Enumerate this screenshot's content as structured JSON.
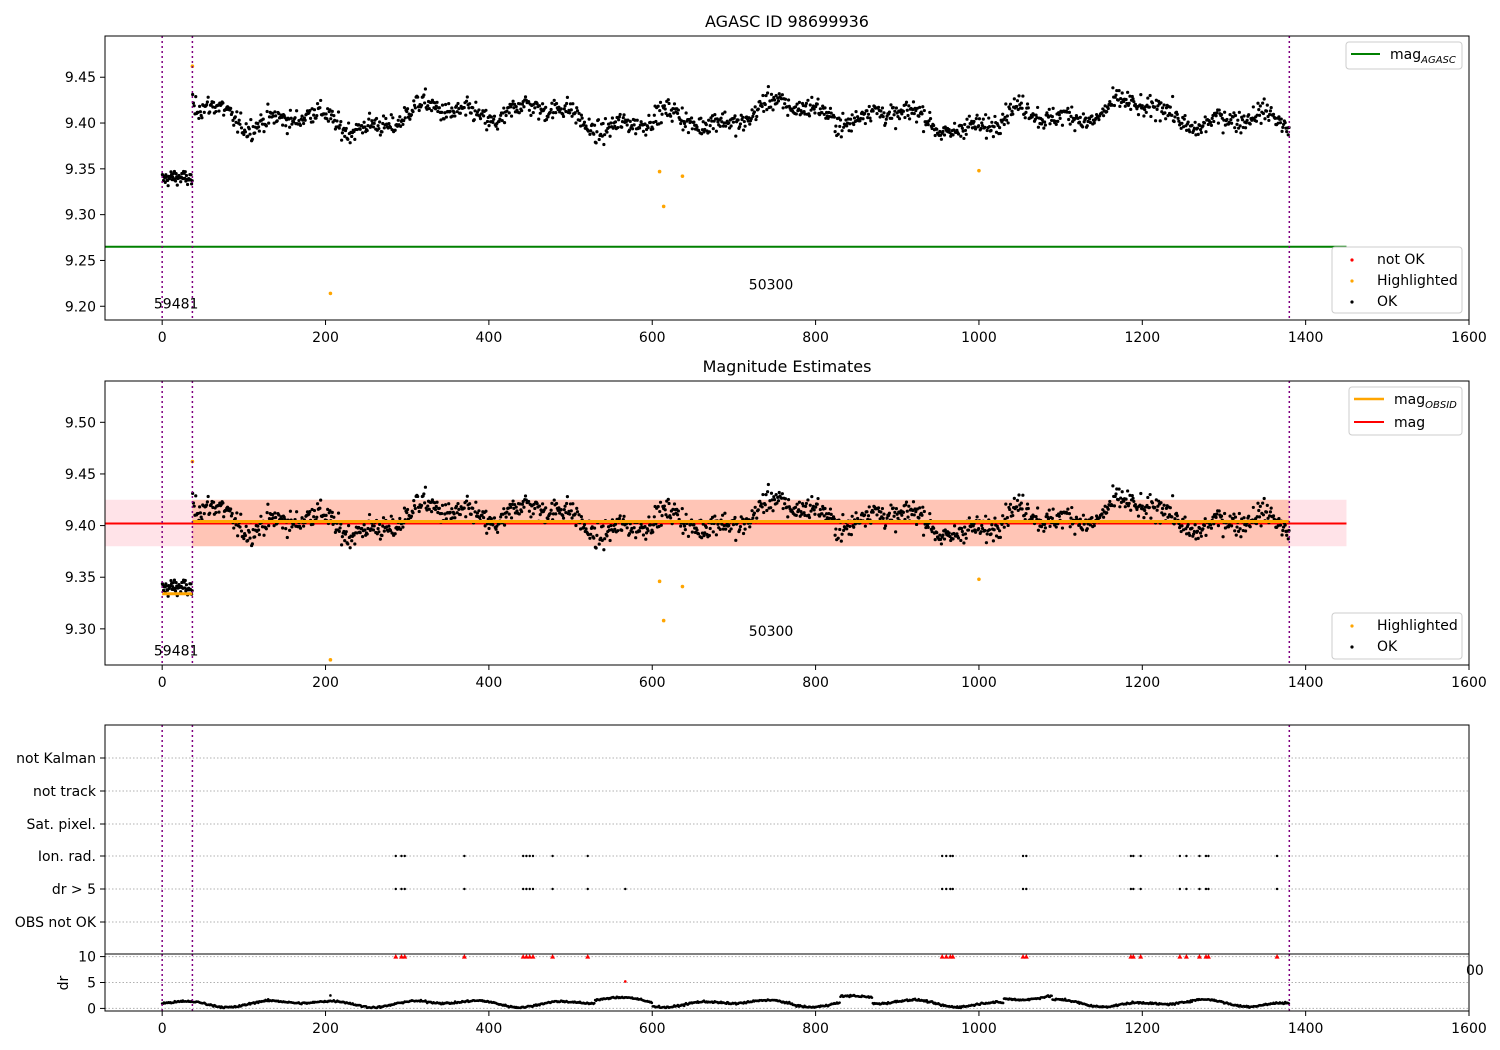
{
  "chart_data": [
    {
      "type": "scatter",
      "title": "AGASC ID 98699936",
      "xlim": [
        -70,
        1600
      ],
      "ylim": [
        9.185,
        9.495
      ],
      "xticks": [
        0,
        200,
        400,
        600,
        800,
        1000,
        1200,
        1400,
        1600
      ],
      "yticks": [
        9.2,
        9.25,
        9.3,
        9.35,
        9.4,
        9.45
      ],
      "vlines": [
        0,
        37,
        1380
      ],
      "hlines": [
        {
          "name": "mag_AGASC",
          "value": 9.265,
          "x_range": [
            -70,
            1450
          ],
          "color": "#008000"
        }
      ],
      "annotations": [
        {
          "text": "59481",
          "x": 0,
          "y": 9.203
        },
        {
          "text": "50300",
          "x": 710,
          "y": 9.224
        }
      ],
      "legend_upper": {
        "position": "upper right",
        "entries": [
          {
            "label": "mag",
            "subscript": "AGASC",
            "kind": "line",
            "color": "#008000"
          }
        ]
      },
      "legend_lower": {
        "position": "lower right",
        "entries": [
          {
            "label": "not OK",
            "kind": "point",
            "color": "#ff0000"
          },
          {
            "label": "Highlighted",
            "kind": "point",
            "color": "#ffa500"
          },
          {
            "label": "OK",
            "kind": "point",
            "color": "#000000"
          }
        ]
      },
      "series": [
        {
          "name": "OK",
          "color": "#000000",
          "segments": [
            {
              "x": [
                0,
                37
              ],
              "level": 9.335,
              "amplitude": 0.007,
              "noise": 0.012
            },
            {
              "x": [
                37,
                1380
              ],
              "level": 9.407,
              "amplitude": 0.022,
              "noise": 0.016
            }
          ]
        },
        {
          "name": "Highlighted",
          "color": "#ffa500",
          "points": [
            [
              37,
              9.462
            ],
            [
              206,
              9.214
            ],
            [
              609,
              9.347
            ],
            [
              614,
              9.309
            ],
            [
              637,
              9.342
            ],
            [
              1000,
              9.348
            ]
          ]
        },
        {
          "name": "not OK",
          "color": "#ff0000",
          "points": []
        }
      ]
    },
    {
      "type": "scatter",
      "title": "Magnitude Estimates",
      "xlim": [
        -70,
        1600
      ],
      "ylim": [
        9.265,
        9.54
      ],
      "xticks": [
        0,
        200,
        400,
        600,
        800,
        1000,
        1200,
        1400,
        1600
      ],
      "yticks": [
        9.3,
        9.35,
        9.4,
        9.45,
        9.5
      ],
      "vlines": [
        0,
        37,
        1380
      ],
      "hlines": [
        {
          "name": "mag",
          "value": 9.402,
          "x_range": [
            -70,
            1450
          ],
          "color": "#ff0000"
        }
      ],
      "bands": [
        {
          "name": "mag range",
          "y": [
            9.38,
            9.425
          ],
          "x_range": [
            -70,
            1450
          ],
          "color": "#ffc0cb",
          "opacity": 0.45
        },
        {
          "name": "mag_OBSID range",
          "y": [
            9.38,
            9.425
          ],
          "x_range": [
            37,
            1380
          ],
          "color": "#ffa07a",
          "opacity": 0.45
        }
      ],
      "obsid_lines": [
        {
          "x": [
            0,
            37
          ],
          "value": 9.334
        },
        {
          "x": [
            37,
            1380
          ],
          "value": 9.404
        }
      ],
      "annotations": [
        {
          "text": "59481",
          "x": 0,
          "y": 9.279
        },
        {
          "text": "50300",
          "x": 710,
          "y": 9.298
        }
      ],
      "legend_upper": {
        "position": "upper right",
        "entries": [
          {
            "label": "mag",
            "subscript": "OBSID",
            "kind": "line",
            "color": "#ffa500"
          },
          {
            "label": "mag",
            "subscript": "",
            "kind": "line",
            "color": "#ff0000"
          }
        ]
      },
      "legend_lower": {
        "position": "lower right",
        "entries": [
          {
            "label": "Highlighted",
            "kind": "point",
            "color": "#ffa500"
          },
          {
            "label": "OK",
            "kind": "point",
            "color": "#000000"
          }
        ]
      },
      "series": [
        {
          "name": "OK",
          "color": "#000000",
          "segments": [
            {
              "x": [
                0,
                37
              ],
              "level": 9.335,
              "amplitude": 0.007,
              "noise": 0.012
            },
            {
              "x": [
                37,
                1380
              ],
              "level": 9.407,
              "amplitude": 0.022,
              "noise": 0.016
            }
          ]
        },
        {
          "name": "Highlighted",
          "color": "#ffa500",
          "points": [
            [
              37,
              9.462
            ],
            [
              206,
              9.27
            ],
            [
              609,
              9.346
            ],
            [
              614,
              9.308
            ],
            [
              637,
              9.341
            ],
            [
              1000,
              9.348
            ]
          ]
        }
      ]
    },
    {
      "type": "scatter",
      "title": "",
      "xlim": [
        -70,
        1600
      ],
      "categories": [
        "OBS not OK",
        "dr > 5",
        "Ion. rad.",
        "Sat. pixel.",
        "not track",
        "not Kalman"
      ],
      "vlines": [
        0,
        37,
        1380
      ],
      "flags": [
        {
          "category": "Ion. rad.",
          "x": [
            286,
            293,
            297,
            370,
            442,
            446,
            450,
            454,
            478,
            521,
            955,
            960,
            965,
            968,
            1054,
            1058,
            1186,
            1189,
            1198,
            1246,
            1254,
            1270,
            1278,
            1281,
            1365
          ]
        },
        {
          "category": "dr > 5",
          "x": [
            286,
            293,
            297,
            370,
            442,
            446,
            450,
            454,
            478,
            521,
            567,
            955,
            960,
            965,
            968,
            1054,
            1058,
            1186,
            1189,
            1198,
            1246,
            1254,
            1270,
            1278,
            1281,
            1365
          ]
        }
      ]
    },
    {
      "type": "scatter",
      "title": "",
      "xlim": [
        -70,
        1600
      ],
      "ylim": [
        -0.5,
        10.5
      ],
      "ylabel": "dr",
      "yticks": [
        0,
        5,
        10
      ],
      "xticks": [
        0,
        200,
        400,
        600,
        800,
        1000,
        1200,
        1400,
        1600
      ],
      "vlines": [
        0,
        37,
        1380
      ],
      "overflow_markers": {
        "y": 10,
        "color": "#ff0000",
        "x": [
          286,
          293,
          297,
          370,
          442,
          446,
          450,
          454,
          478,
          521,
          955,
          960,
          965,
          968,
          1054,
          1058,
          1186,
          1189,
          1198,
          1246,
          1254,
          1270,
          1278,
          1281,
          1365
        ]
      },
      "outliers": [
        {
          "x": 567,
          "y": 5.2,
          "color": "#ff0000"
        },
        {
          "x": 206,
          "y": 2.5,
          "color": "#000000"
        }
      ],
      "series": [
        {
          "name": "dr",
          "color": "#000000",
          "x_range": [
            0,
            1380
          ],
          "baseline": 1.0,
          "amplitude": 0.8
        }
      ],
      "clipped_tick_label": "00"
    }
  ]
}
